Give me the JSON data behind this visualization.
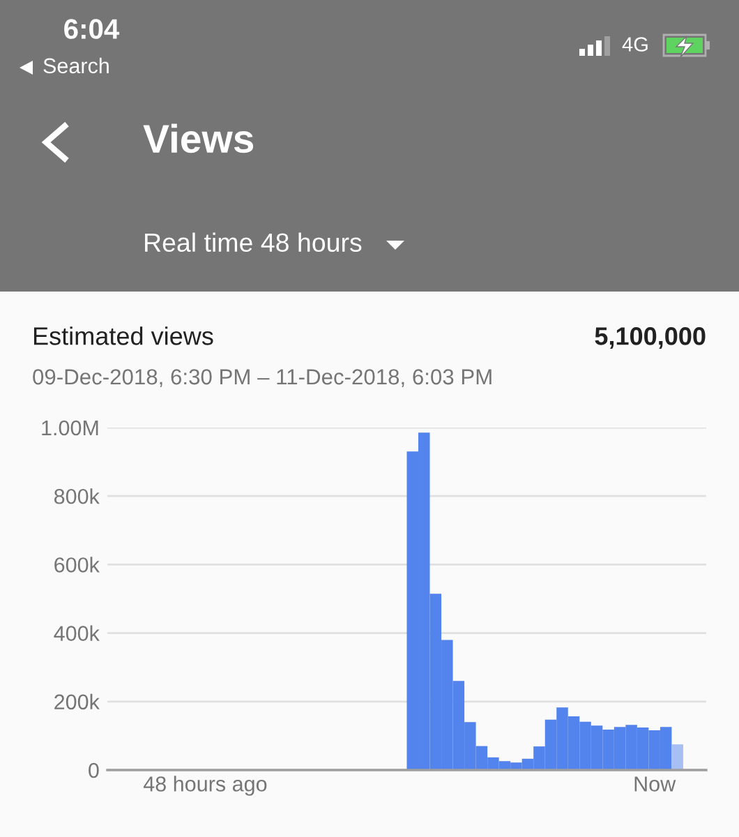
{
  "chart_data": {
    "type": "bar",
    "title": "Estimated views",
    "subtitle": "09-Dec-2018, 6:30 PM – 11-Dec-2018, 6:03 PM",
    "annotations": [
      "6:04",
      "Search",
      "4G",
      "Views",
      "Real time 48 hours",
      "5,100,000"
    ],
    "categories": [
      null,
      null,
      null,
      null,
      null,
      null,
      "48 hours ago",
      null,
      null,
      null,
      null,
      null,
      null,
      null,
      null,
      null,
      null,
      null,
      null,
      null,
      null,
      null,
      null,
      null,
      null,
      null,
      null,
      null,
      null,
      null,
      null,
      null,
      null,
      null,
      null,
      null,
      null,
      null,
      null,
      null,
      null,
      null,
      null,
      null,
      null,
      "Now",
      null,
      null
    ],
    "values": [
      0,
      0,
      0,
      0,
      0,
      0,
      0,
      0,
      0,
      0,
      0,
      0,
      0,
      0,
      0,
      0,
      0,
      0,
      0,
      0,
      0,
      0,
      0,
      0,
      930000,
      985000,
      515000,
      380000,
      260000,
      140000,
      70000,
      37000,
      26000,
      22000,
      33000,
      69000,
      147000,
      183000,
      157000,
      141000,
      130000,
      118000,
      126000,
      132000,
      124000,
      116000,
      126000,
      75000
    ],
    "colors": [
      "#5383ec",
      "#5383ec",
      "#5383ec",
      "#5383ec",
      "#5383ec",
      "#5383ec",
      "#5383ec",
      "#5383ec",
      "#5383ec",
      "#5383ec",
      "#5383ec",
      "#5383ec",
      "#5383ec",
      "#5383ec",
      "#5383ec",
      "#5383ec",
      "#5383ec",
      "#5383ec",
      "#5383ec",
      "#5383ec",
      "#5383ec",
      "#5383ec",
      "#5383ec",
      "#5383ec",
      "#5383ec",
      "#5383ec",
      "#5383ec",
      "#5383ec",
      "#5383ec",
      "#5383ec",
      "#5383ec",
      "#5383ec",
      "#5383ec",
      "#5383ec",
      "#5383ec",
      "#5383ec",
      "#5383ec",
      "#5383ec",
      "#5383ec",
      "#5383ec",
      "#5383ec",
      "#5383ec",
      "#5383ec",
      "#5383ec",
      "#5383ec",
      "#5383ec",
      "#5383ec",
      "#a7bff4"
    ],
    "ylim": [
      0,
      1000000
    ],
    "yticks": [
      0,
      {
        "value": 200000,
        "label": "200k"
      },
      {
        "value": 400000,
        "label": "400k"
      },
      {
        "value": 600000,
        "label": "600k"
      },
      {
        "value": 800000,
        "label": "800k"
      },
      {
        "value": 1000000,
        "label": "1.00M"
      }
    ],
    "grid": "y"
  }
}
